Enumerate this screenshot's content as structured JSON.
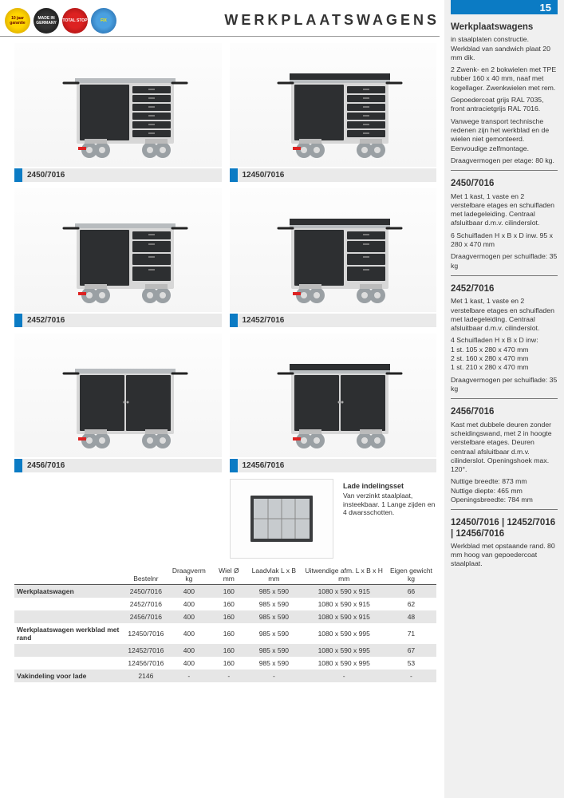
{
  "header": {
    "title": "WERKPLAATSWAGENS",
    "page_number": "15",
    "badges": [
      {
        "label": "10 jaar garantie",
        "cls": "b1"
      },
      {
        "label": "MADE IN GERMANY",
        "cls": "b2"
      },
      {
        "label": "TOTAL STOP",
        "cls": "b3"
      },
      {
        "label": "FIX",
        "cls": "b4"
      }
    ]
  },
  "cards": [
    {
      "code": "2450/7016",
      "variant": "drawers",
      "rim": false
    },
    {
      "code": "12450/7016",
      "variant": "drawers",
      "rim": true
    },
    {
      "code": "2452/7016",
      "variant": "drawers4",
      "rim": false
    },
    {
      "code": "12452/7016",
      "variant": "drawers4",
      "rim": true
    },
    {
      "code": "2456/7016",
      "variant": "doors",
      "rim": false
    },
    {
      "code": "12456/7016",
      "variant": "doors",
      "rim": true
    }
  ],
  "lade": {
    "title": "Lade indelingsset",
    "body": "Van verzinkt staalplaat, insteekbaar. 1 Lange zijden en 4 dwarsschotten."
  },
  "table": {
    "headers": [
      "",
      "Bestelnr",
      "Draagverm kg",
      "Wiel Ø mm",
      "Laadvlak L x B mm",
      "Uitwendige afm. L x B x H mm",
      "Eigen gewicht kg"
    ],
    "rows": [
      {
        "group": "Werkplaatswagen",
        "cells": [
          "2450/7016",
          "400",
          "160",
          "985 x 590",
          "1080 x 590 x 915",
          "66"
        ],
        "shaded": true
      },
      {
        "group": "",
        "cells": [
          "2452/7016",
          "400",
          "160",
          "985 x 590",
          "1080 x 590 x 915",
          "62"
        ],
        "shaded": false
      },
      {
        "group": "",
        "cells": [
          "2456/7016",
          "400",
          "160",
          "985 x 590",
          "1080 x 590 x 915",
          "48"
        ],
        "shaded": true
      },
      {
        "group": "Werkplaatswagen werkblad met rand",
        "cells": [
          "12450/7016",
          "400",
          "160",
          "985 x 590",
          "1080 x 590 x 995",
          "71"
        ],
        "shaded": false
      },
      {
        "group": "",
        "cells": [
          "12452/7016",
          "400",
          "160",
          "985 x 590",
          "1080 x 590 x 995",
          "67"
        ],
        "shaded": true
      },
      {
        "group": "",
        "cells": [
          "12456/7016",
          "400",
          "160",
          "985 x 590",
          "1080 x 590 x 995",
          "53"
        ],
        "shaded": false
      },
      {
        "group": "Vakindeling voor lade",
        "cells": [
          "2146",
          "-",
          "-",
          "-",
          "-",
          "-"
        ],
        "shaded": true
      }
    ]
  },
  "sidebar": {
    "sections": [
      {
        "heading": "Werkplaatswagens",
        "paras": [
          "in staalplaten constructie. Werkblad van sandwich plaat 20 mm dik.",
          "2 Zwenk- en 2 bokwielen met TPE rubber 160 x 40 mm, naaf met kogellager. Zwenkwielen met rem.",
          "Gepoedercoat grijs RAL 7035, front antracietgrijs RAL 7016.",
          "Vanwege transport technische redenen zijn het werkblad en de wielen niet gemonteerd. Eenvoudige zelfmontage.",
          "Draagvermogen per etage: 80 kg."
        ]
      },
      {
        "heading": "2450/7016",
        "paras": [
          "Met 1 kast, 1 vaste en 2 verstelbare etages en schuifladen met ladegeleiding. Centraal afsluitbaar d.m.v. cilinderslot.",
          "6 Schuifladen H x B x D inw. 95 x 280 x 470 mm",
          "Draagvermogen per schuiflade: 35 kg"
        ]
      },
      {
        "heading": "2452/7016",
        "paras": [
          "Met 1 kast, 1 vaste en 2 verstelbare etages en schuifladen met ladegeleiding. Centraal afsluitbaar d.m.v. cilinderslot.",
          "4 Schuifladen H x B x D inw:\n1 st. 105 x 280 x 470 mm\n2 st. 160 x 280 x 470 mm\n1 st. 210 x 280 x 470 mm",
          "Draagvermogen per schuiflade: 35 kg"
        ]
      },
      {
        "heading": "2456/7016",
        "paras": [
          "Kast met dubbele deuren zonder scheidingswand, met 2 in hoogte verstelbare etages. Deuren centraal afsluitbaar d.m.v. cilinderslot. Openingshoek max. 120°.",
          "Nuttige breedte: 873 mm\nNuttige diepte: 465 mm\nOpeningsbreedte: 784 mm"
        ]
      },
      {
        "heading": "12450/7016 | 12452/7016 | 12456/7016",
        "paras": [
          "Werkblad met opstaande rand. 80 mm hoog van gepoedercoat staalplaat."
        ]
      }
    ]
  },
  "colors": {
    "accent": "#0b7bc4",
    "body_gray": "#d7d7d7",
    "front_dark": "#2d2f31",
    "top_gray": "#b8bcbf",
    "wheel": "#9aa0a4"
  }
}
